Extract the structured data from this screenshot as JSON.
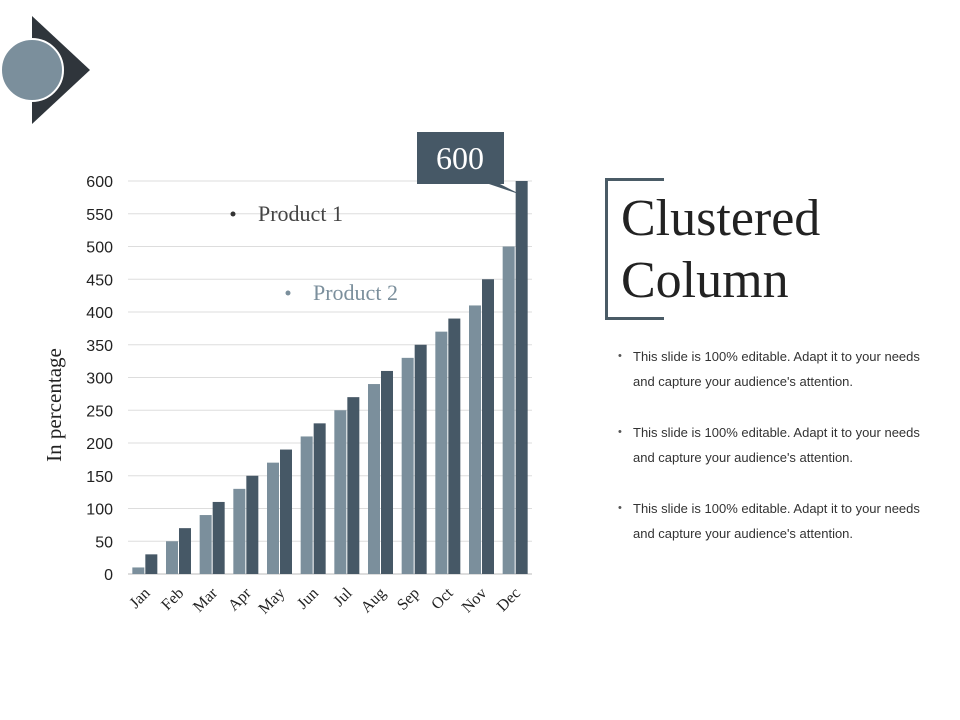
{
  "colors": {
    "product1": "#7b8f9c",
    "product2": "#465866",
    "callout": "#465866",
    "grid": "#dddddd",
    "logo_circle": "#7b8f9c",
    "logo_triangle": "#2f353b"
  },
  "slide": {
    "title_line1": "Clustered",
    "title_line2": "Column",
    "bullets": [
      "This slide is 100% editable. Adapt it to your needs and capture your audience's attention.",
      "This slide is 100% editable. Adapt it to your needs and capture your audience's attention.",
      "This slide is 100% editable. Adapt it to your needs and capture your audience's attention."
    ]
  },
  "chart_data": {
    "type": "bar",
    "title": "",
    "xlabel": "",
    "ylabel": "In percentage",
    "ylim": [
      0,
      600
    ],
    "yticks": [
      "0",
      "50",
      "100",
      "150",
      "200",
      "250",
      "300",
      "350",
      "400",
      "450",
      "500",
      "550",
      "600"
    ],
    "grid": true,
    "legend_position": "top-left",
    "categories": [
      "Jan",
      "Feb",
      "Mar",
      "Apr",
      "May",
      "Jun",
      "Jul",
      "Aug",
      "Sep",
      "Oct",
      "Nov",
      "Dec"
    ],
    "series": [
      {
        "name": "Product 1",
        "values": [
          10,
          50,
          90,
          130,
          170,
          210,
          250,
          290,
          330,
          370,
          410,
          500
        ]
      },
      {
        "name": "Product 2",
        "values": [
          30,
          70,
          110,
          150,
          190,
          230,
          270,
          310,
          350,
          390,
          450,
          600
        ]
      }
    ],
    "annotation": {
      "text": "600",
      "category": "Dec",
      "series": "Product 2",
      "value": 600
    }
  }
}
